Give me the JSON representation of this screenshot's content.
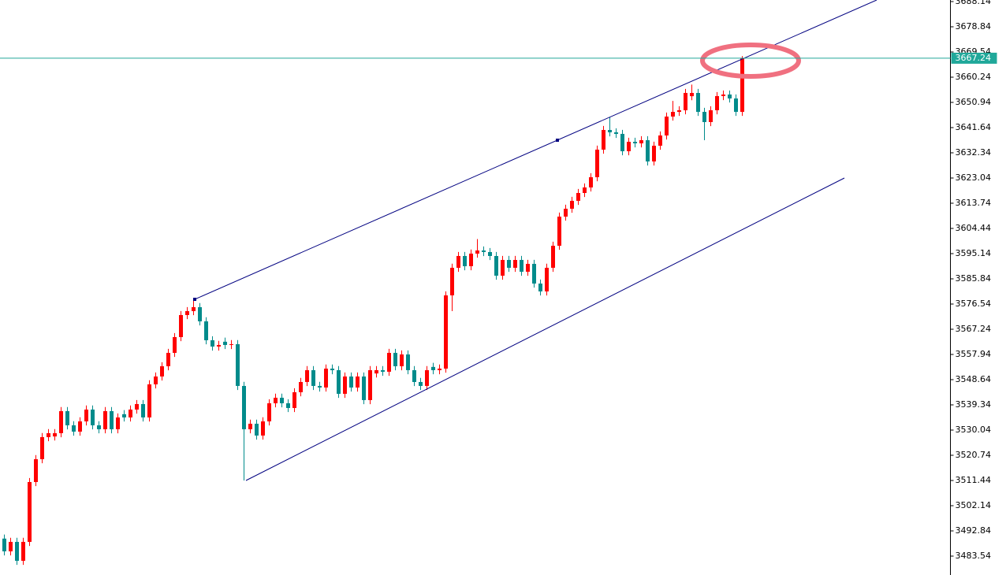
{
  "chart_data": {
    "type": "candlestick",
    "up_color": "#ff0000",
    "down_color": "#008b8b",
    "ylim": [
      3476.57,
      3688.72
    ],
    "yticks": [
      3688.14,
      3678.84,
      3669.54,
      3660.24,
      3650.94,
      3641.64,
      3632.34,
      3623.04,
      3613.74,
      3604.44,
      3595.14,
      3585.84,
      3576.54,
      3567.24,
      3557.94,
      3548.64,
      3539.34,
      3530.04,
      3520.74,
      3511.44,
      3502.14,
      3492.84,
      3483.54
    ],
    "current_price": 3667.24,
    "price_line_color": "#20a89a",
    "open": [
      3490.0,
      3485.3,
      3488.79,
      3481.81,
      3488.79,
      3510.87,
      3519.3,
      3527.44,
      3527.69,
      3528.89,
      3537.03,
      3531.8,
      3529.47,
      3533.25,
      3537.61,
      3531.8,
      3530.34,
      3537.03,
      3530.34,
      3535.9,
      3534.7,
      3537.61,
      3539.64,
      3534.7,
      3546.91,
      3549.81,
      3553.59,
      3558.53,
      3564.34,
      3572.48,
      3573.93,
      3575.39,
      3570.16,
      3563.18,
      3560.86,
      3562.64,
      3561.44,
      3561.73,
      3546.33,
      3530.34,
      3532.38,
      3528.02,
      3533.25,
      3539.93,
      3541.97,
      3539.93,
      3538.19,
      3544.0,
      3547.78,
      3552.14,
      3546.33,
      3545.74,
      3552.72,
      3552.14,
      3543.42,
      3549.81,
      3545.74,
      3549.81,
      3541.1,
      3550.94,
      3552.14,
      3551.56,
      3558.53,
      3553.59,
      3557.95,
      3552.14,
      3547.78,
      3546.33,
      3553.34,
      3552.14,
      3552.72,
      3579.74,
      3589.92,
      3594.27,
      3590.5,
      3595.15,
      3596.31,
      3595.73,
      3594.27,
      3587.01,
      3592.82,
      3589.92,
      3592.82,
      3588.46,
      3591.37,
      3584.1,
      3581.2,
      3589.92,
      3598.05,
      3608.8,
      3611.71,
      3614.62,
      3617.52,
      3619.56,
      3623.33,
      3633.51,
      3640.77,
      3639.9,
      3639.32,
      3632.92,
      3636.41,
      3635.83,
      3636.99,
      3629.15,
      3634.96,
      3638.74,
      3645.71,
      3647.45,
      3648.04,
      3653.23,
      3654.43,
      3647.45,
      3643.68,
      3648.04,
      3653.27,
      3653.85,
      3652.39,
      3647.45
    ],
    "high": [
      3491.5,
      3490.29,
      3490.29,
      3490.29,
      3512.37,
      3520.8,
      3528.94,
      3530.39,
      3530.39,
      3538.53,
      3538.53,
      3533.3,
      3534.75,
      3539.11,
      3539.11,
      3533.3,
      3538.53,
      3538.53,
      3536.2,
      3537.4,
      3539.11,
      3541.14,
      3541.14,
      3548.41,
      3551.31,
      3555.09,
      3560.03,
      3565.84,
      3573.98,
      3575.43,
      3578.29,
      3576.89,
      3571.66,
      3564.68,
      3562.94,
      3564.14,
      3563.23,
      3563.23,
      3547.83,
      3533.88,
      3533.88,
      3534.75,
      3541.43,
      3543.47,
      3543.47,
      3541.43,
      3545.5,
      3549.28,
      3553.64,
      3553.64,
      3547.83,
      3554.22,
      3554.22,
      3553.64,
      3551.31,
      3551.31,
      3551.31,
      3551.31,
      3553.64,
      3553.64,
      3553.64,
      3560.03,
      3560.03,
      3559.45,
      3559.45,
      3553.64,
      3549.28,
      3553.64,
      3554.84,
      3554.22,
      3581.24,
      3591.42,
      3595.77,
      3595.77,
      3596.65,
      3600.5,
      3597.81,
      3597.23,
      3595.77,
      3594.32,
      3594.32,
      3594.32,
      3594.32,
      3592.87,
      3592.87,
      3585.6,
      3591.42,
      3599.55,
      3610.3,
      3613.21,
      3616.12,
      3619.02,
      3621.06,
      3624.83,
      3635.01,
      3642.27,
      3645.4,
      3641.4,
      3640.82,
      3637.91,
      3637.91,
      3638.49,
      3638.49,
      3636.46,
      3640.24,
      3647.21,
      3651.5,
      3649.54,
      3655.93,
      3657.5,
      3655.93,
      3648.95,
      3649.54,
      3654.77,
      3655.35,
      3655.35,
      3653.89,
      3668.0
    ],
    "low": [
      3483.8,
      3483.8,
      3480.31,
      3480.31,
      3487.29,
      3509.37,
      3517.8,
      3525.94,
      3526.19,
      3527.39,
      3530.3,
      3527.97,
      3527.97,
      3531.75,
      3530.3,
      3528.84,
      3528.84,
      3528.84,
      3528.84,
      3533.2,
      3533.2,
      3536.11,
      3533.2,
      3533.2,
      3545.41,
      3548.31,
      3552.09,
      3557.03,
      3562.84,
      3570.98,
      3572.43,
      3568.66,
      3561.68,
      3559.36,
      3559.36,
      3559.94,
      3559.94,
      3544.83,
      3511.44,
      3528.84,
      3526.52,
      3526.52,
      3531.75,
      3538.43,
      3538.43,
      3536.69,
      3536.69,
      3542.5,
      3546.28,
      3544.83,
      3544.24,
      3544.24,
      3550.64,
      3541.92,
      3541.92,
      3544.24,
      3544.24,
      3539.6,
      3539.6,
      3549.44,
      3550.06,
      3550.06,
      3552.09,
      3552.09,
      3550.64,
      3546.28,
      3544.83,
      3544.83,
      3550.64,
      3550.64,
      3551.22,
      3573.93,
      3588.42,
      3589.0,
      3589.0,
      3593.65,
      3594.23,
      3592.77,
      3585.51,
      3585.51,
      3588.42,
      3588.42,
      3586.96,
      3586.96,
      3582.6,
      3579.7,
      3579.7,
      3588.42,
      3596.55,
      3607.3,
      3610.21,
      3613.12,
      3616.02,
      3618.06,
      3621.83,
      3632.01,
      3638.4,
      3637.82,
      3631.42,
      3631.42,
      3634.33,
      3634.33,
      3627.65,
      3627.65,
      3633.46,
      3637.24,
      3644.21,
      3645.95,
      3646.54,
      3651.73,
      3645.95,
      3637.0,
      3642.18,
      3646.54,
      3651.77,
      3650.89,
      3645.95,
      3645.95
    ],
    "close": [
      3485.3,
      3488.79,
      3481.81,
      3488.79,
      3510.87,
      3519.3,
      3527.44,
      3528.89,
      3528.89,
      3537.03,
      3531.8,
      3529.47,
      3533.25,
      3537.61,
      3531.8,
      3530.34,
      3537.03,
      3530.34,
      3534.7,
      3534.7,
      3537.61,
      3539.64,
      3534.7,
      3546.91,
      3549.81,
      3553.59,
      3558.53,
      3564.34,
      3572.48,
      3573.93,
      3575.39,
      3570.16,
      3563.18,
      3560.86,
      3561.44,
      3561.44,
      3561.73,
      3546.33,
      3530.34,
      3532.38,
      3528.02,
      3533.25,
      3539.93,
      3541.97,
      3539.93,
      3538.19,
      3544.0,
      3547.78,
      3552.14,
      3546.33,
      3545.74,
      3552.72,
      3552.14,
      3543.42,
      3549.81,
      3545.74,
      3549.81,
      3541.1,
      3552.14,
      3552.14,
      3551.56,
      3558.53,
      3553.59,
      3557.95,
      3552.14,
      3547.78,
      3546.33,
      3552.14,
      3552.14,
      3552.72,
      3579.74,
      3589.92,
      3594.27,
      3590.5,
      3595.15,
      3596.31,
      3595.73,
      3594.27,
      3587.01,
      3592.82,
      3589.92,
      3592.82,
      3588.46,
      3591.37,
      3584.1,
      3581.2,
      3589.92,
      3598.05,
      3608.8,
      3611.71,
      3614.62,
      3617.52,
      3619.56,
      3623.33,
      3633.51,
      3640.77,
      3639.9,
      3639.32,
      3632.92,
      3636.41,
      3635.83,
      3636.99,
      3629.15,
      3634.96,
      3638.74,
      3645.71,
      3647.45,
      3648.04,
      3654.43,
      3654.43,
      3647.45,
      3643.68,
      3648.04,
      3653.27,
      3653.85,
      3652.39,
      3647.45,
      3667.24
    ]
  }
}
